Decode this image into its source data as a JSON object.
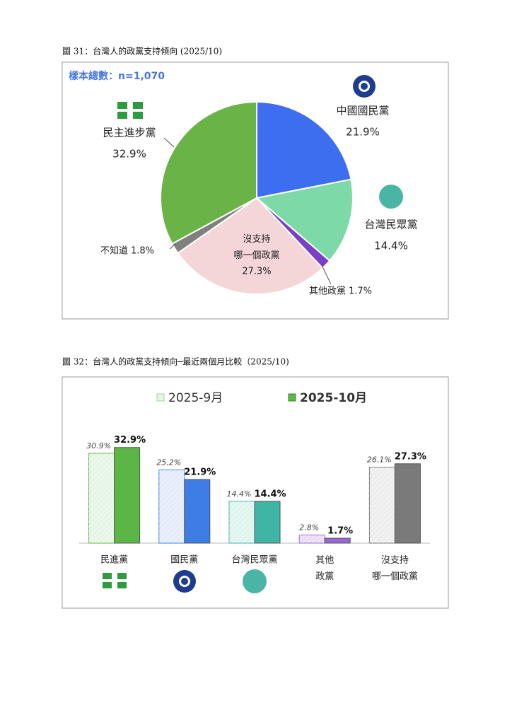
{
  "chart_data": [
    {
      "type": "pie",
      "title": "圖 31：台灣人的政黨支持傾向 (2025/10)",
      "subtitle": "樣本總數：n=1,070",
      "categories": [
        "中國國民黨",
        "台灣民眾黨",
        "其他政黨",
        "沒支持\n哪一個政黨",
        "不知道",
        "民主進步黨"
      ],
      "values": [
        21.9,
        14.4,
        1.7,
        27.3,
        1.8,
        32.9
      ],
      "value_labels": [
        "21.9%",
        "14.4%",
        "1.7%",
        "27.3%",
        "1.8%",
        "32.9%"
      ],
      "colors": [
        "#3d6ef0",
        "#7dd9a8",
        "#7b3fc4",
        "#f4d5d8",
        "#808080",
        "#6ab447"
      ]
    },
    {
      "type": "bar",
      "title": "圖 32：台灣人的政黨支持傾向─最近兩個月比較（2025/10)",
      "categories": [
        "民進黨",
        "國民黨",
        "台灣民眾黨",
        "其他\n政黨",
        "沒支持\n哪一個政黨"
      ],
      "ylim": [
        0,
        45
      ],
      "series": [
        {
          "name": "2025-9月",
          "values": [
            30.9,
            25.2,
            14.4,
            2.8,
            26.1
          ],
          "value_labels": [
            "30.9%",
            "25.2%",
            "14.4%",
            "2.8%",
            "26.1%"
          ],
          "colors": [
            "#e6f5e6",
            "#e4ebfb",
            "#def5ef",
            "#eadcf7",
            "#ededed"
          ]
        },
        {
          "name": "2025-10月",
          "values": [
            32.9,
            21.9,
            14.4,
            1.7,
            27.3
          ],
          "value_labels": [
            "32.9%",
            "21.9%",
            "14.4%",
            "1.7%",
            "27.3%"
          ],
          "colors": [
            "#5cb646",
            "#3f7de6",
            "#3fb5a6",
            "#9a68d6",
            "#7a7a7a"
          ]
        }
      ]
    }
  ]
}
